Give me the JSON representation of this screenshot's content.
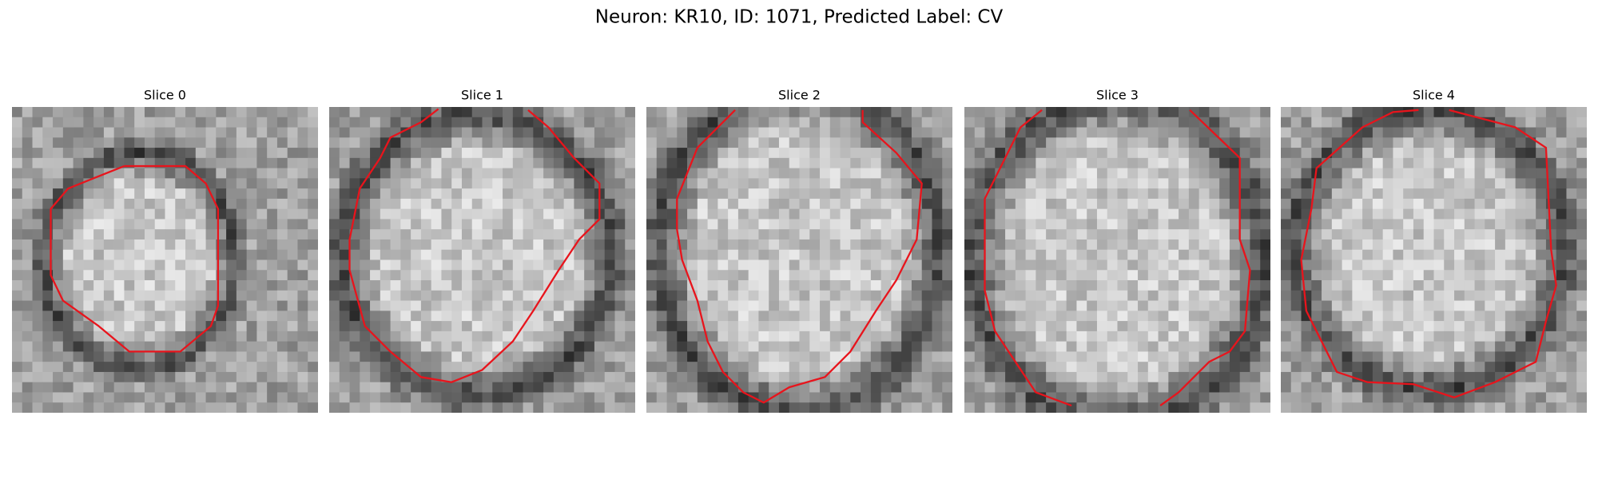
{
  "title": "Neuron: KR10, ID: 1071, Predicted Label: CV",
  "panels": [
    {
      "title": "Slice 0"
    },
    {
      "title": "Slice 1"
    },
    {
      "title": "Slice 2"
    },
    {
      "title": "Slice 3"
    },
    {
      "title": "Slice 4"
    }
  ]
}
